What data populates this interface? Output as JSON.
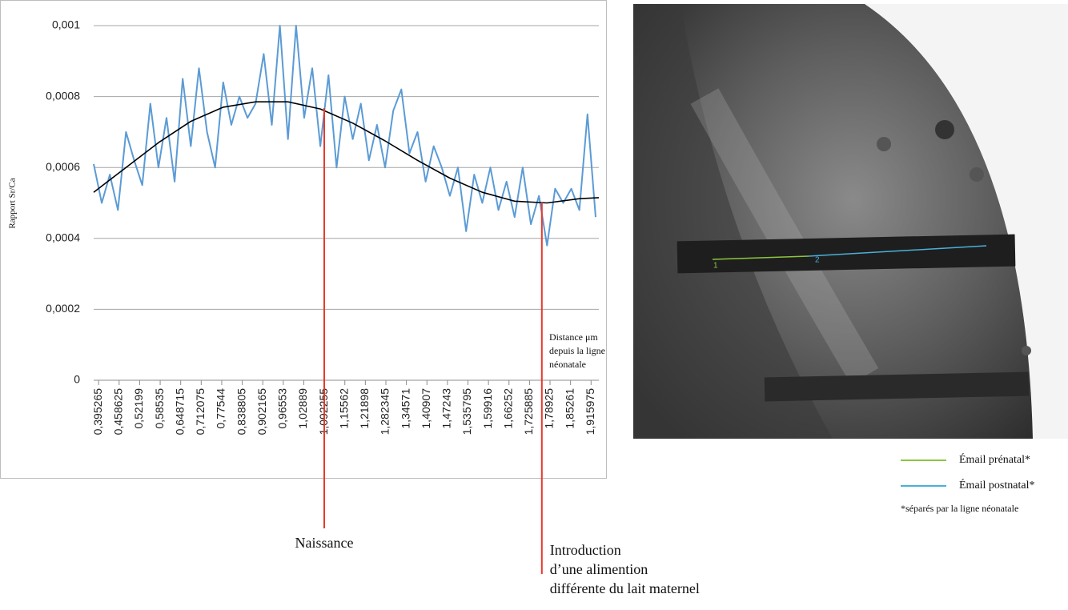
{
  "chart_data": {
    "type": "line",
    "y_label": "Rapport Sr/Ca",
    "x_label": [
      "Distance μm",
      "depuis la ligne",
      "néonatale"
    ],
    "xlim": [
      0.38,
      1.94
    ],
    "ylim": [
      0,
      0.001
    ],
    "grid": true,
    "yticks": [
      0,
      {
        "value": 0.0002,
        "label": "0,0002"
      },
      {
        "value": 0.0004,
        "label": "0,0004"
      },
      {
        "value": 0.0006,
        "label": "0,0006"
      },
      {
        "value": 0.0008,
        "label": "0,0008"
      },
      {
        "value": 0.001,
        "label": "0,001"
      }
    ],
    "xticks": [
      {
        "value": 0.395265,
        "label": "0,395265"
      },
      {
        "value": 0.458625,
        "label": "0,458625"
      },
      {
        "value": 0.52199,
        "label": "0,52199"
      },
      {
        "value": 0.58535,
        "label": "0,58535"
      },
      {
        "value": 0.648715,
        "label": "0,648715"
      },
      {
        "value": 0.712075,
        "label": "0,712075"
      },
      {
        "value": 0.77544,
        "label": "0,77544"
      },
      {
        "value": 0.838805,
        "label": "0,838805"
      },
      {
        "value": 0.902165,
        "label": "0,902165"
      },
      {
        "value": 0.96553,
        "label": "0,96553"
      },
      {
        "value": 1.02889,
        "label": "1,02889"
      },
      {
        "value": 1.092255,
        "label": "1,092255"
      },
      {
        "value": 1.15562,
        "label": "1,15562"
      },
      {
        "value": 1.21898,
        "label": "1,21898"
      },
      {
        "value": 1.282345,
        "label": "1,282345"
      },
      {
        "value": 1.34571,
        "label": "1,34571"
      },
      {
        "value": 1.40907,
        "label": "1,40907"
      },
      {
        "value": 1.47243,
        "label": "1,47243"
      },
      {
        "value": 1.535795,
        "label": "1,535795"
      },
      {
        "value": 1.59916,
        "label": "1,59916"
      },
      {
        "value": 1.66252,
        "label": "1,66252"
      },
      {
        "value": 1.725885,
        "label": "1,725885"
      },
      {
        "value": 1.78925,
        "label": "1,78925"
      },
      {
        "value": 1.85261,
        "label": "1,85261"
      },
      {
        "value": 1.915975,
        "label": "1,915975"
      }
    ],
    "series": [
      {
        "color": "#5b9bd5",
        "x": [
          0.38,
          0.405,
          0.43,
          0.455,
          0.48,
          0.505,
          0.53,
          0.555,
          0.58,
          0.605,
          0.63,
          0.655,
          0.68,
          0.705,
          0.73,
          0.755,
          0.78,
          0.805,
          0.83,
          0.855,
          0.88,
          0.905,
          0.93,
          0.955,
          0.98,
          1.005,
          1.03,
          1.055,
          1.08,
          1.105,
          1.13,
          1.155,
          1.18,
          1.205,
          1.23,
          1.255,
          1.28,
          1.305,
          1.33,
          1.355,
          1.38,
          1.405,
          1.43,
          1.455,
          1.48,
          1.505,
          1.53,
          1.555,
          1.58,
          1.605,
          1.63,
          1.655,
          1.68,
          1.705,
          1.73,
          1.755,
          1.78,
          1.805,
          1.83,
          1.855,
          1.88,
          1.905,
          1.93
        ],
        "values": [
          0.00061,
          0.0005,
          0.00058,
          0.00048,
          0.0007,
          0.00062,
          0.00055,
          0.00078,
          0.0006,
          0.00074,
          0.00056,
          0.00085,
          0.00066,
          0.00088,
          0.0007,
          0.0006,
          0.00084,
          0.00072,
          0.0008,
          0.00074,
          0.00078,
          0.00092,
          0.00072,
          0.001,
          0.00068,
          0.001,
          0.00074,
          0.00088,
          0.00066,
          0.00086,
          0.0006,
          0.0008,
          0.00068,
          0.00078,
          0.00062,
          0.00072,
          0.0006,
          0.00076,
          0.00082,
          0.00064,
          0.0007,
          0.00056,
          0.00066,
          0.0006,
          0.00052,
          0.0006,
          0.00042,
          0.00058,
          0.0005,
          0.0006,
          0.00048,
          0.00056,
          0.00046,
          0.0006,
          0.00044,
          0.00052,
          0.00038,
          0.00054,
          0.0005,
          0.00054,
          0.00048,
          0.00075,
          0.00046
        ]
      },
      {
        "color": "#000000",
        "x": [
          0.38,
          0.48,
          0.58,
          0.68,
          0.78,
          0.88,
          0.98,
          1.08,
          1.18,
          1.28,
          1.38,
          1.48,
          1.58,
          1.68,
          1.78,
          1.88,
          1.94
        ],
        "values": [
          0.00053,
          0.0006,
          0.00067,
          0.00073,
          0.00077,
          0.000785,
          0.000785,
          0.000765,
          0.000725,
          0.000675,
          0.00062,
          0.00057,
          0.00053,
          0.000505,
          0.0005,
          0.000512,
          0.000515
        ]
      }
    ],
    "annotations": [
      {
        "x": 1.092,
        "color": "#e8392b",
        "text": [
          "Naissance"
        ]
      },
      {
        "x": 1.764,
        "color": "#e8392b",
        "text": [
          "Introduction",
          "d’une alimention",
          "différente du lait maternel"
        ]
      }
    ]
  },
  "image": {
    "labels": [
      "1",
      "2"
    ]
  },
  "image_legend": {
    "entries": [
      {
        "name": "Émail prénatal*",
        "color": "#8cc63f"
      },
      {
        "name": "Émail postnatal*",
        "color": "#4ab0d9"
      }
    ],
    "note": "*séparés par la ligne néonatale"
  }
}
